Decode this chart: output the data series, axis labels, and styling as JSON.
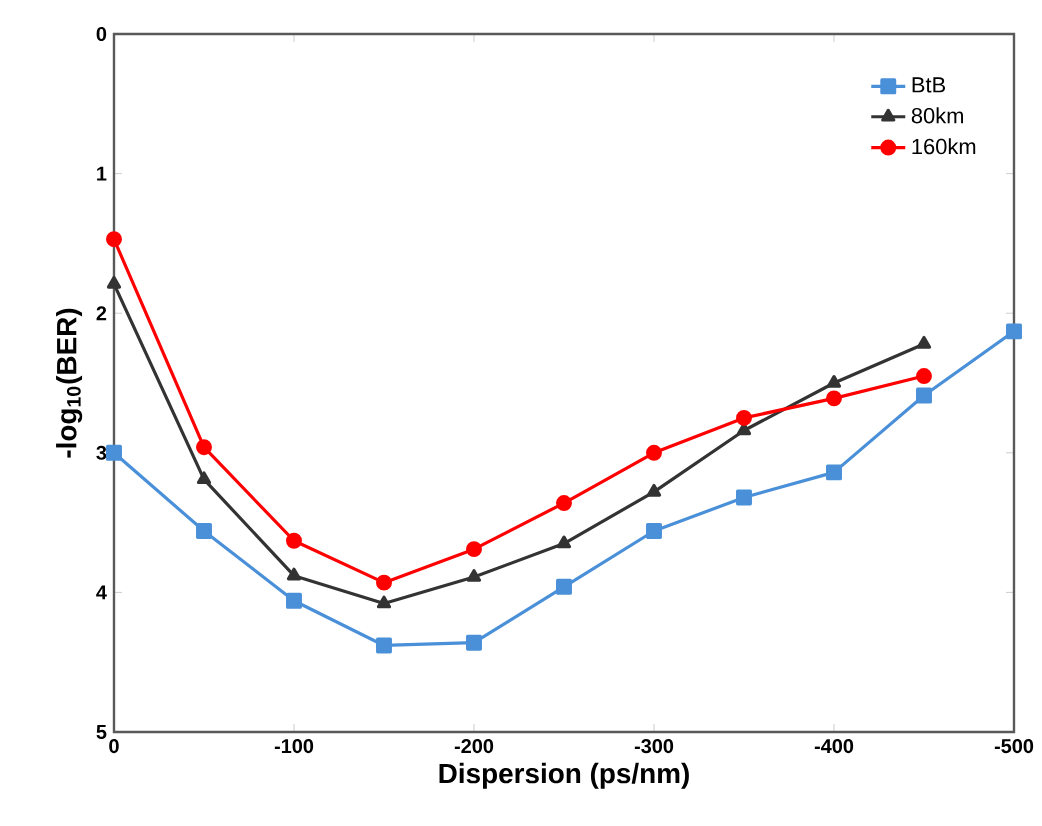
{
  "chart_data": {
    "type": "line",
    "xlabel": "Dispersion (ps/nm)",
    "ylabel": "-log$_{10}$(BER)",
    "x": [
      0,
      -50,
      -100,
      -150,
      -200,
      -250,
      -300,
      -350,
      -400,
      -450,
      -500
    ],
    "series": [
      {
        "name": "BtB",
        "color": "#4a90d9",
        "marker": "square",
        "values": [
          3.0,
          3.56,
          4.06,
          4.38,
          4.36,
          3.96,
          3.56,
          3.32,
          3.14,
          2.59,
          2.13
        ]
      },
      {
        "name": "80km",
        "color": "#333333",
        "marker": "triangle",
        "values": [
          1.79,
          3.19,
          3.88,
          4.08,
          3.89,
          3.65,
          3.28,
          2.84,
          2.5,
          2.22,
          null
        ]
      },
      {
        "name": "160km",
        "color": "#ff0000",
        "marker": "circle",
        "values": [
          1.47,
          2.96,
          3.63,
          3.93,
          3.69,
          3.36,
          3.0,
          2.75,
          2.61,
          2.45,
          null
        ]
      }
    ],
    "xlim": [
      0,
      -500
    ],
    "ylim": [
      5,
      0
    ],
    "xticks": [
      0,
      -100,
      -200,
      -300,
      -400,
      -500
    ],
    "yticks": [
      0,
      1,
      2,
      3,
      4,
      5
    ],
    "grid": false,
    "legend": "top right",
    "line_style": "solid"
  }
}
